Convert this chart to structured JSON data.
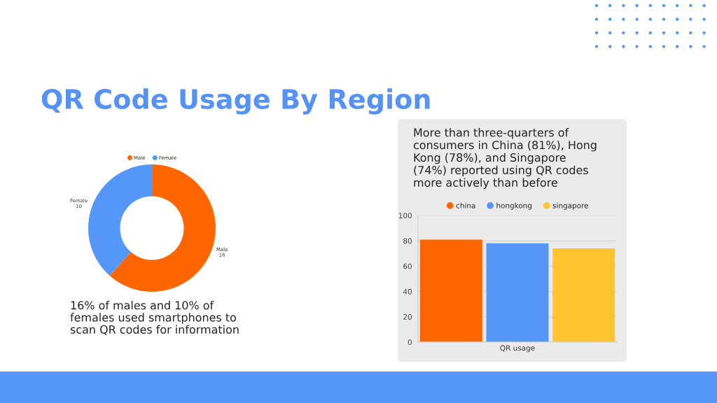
{
  "chart_data": [
    {
      "type": "donut",
      "title": "QR Code Usage By Region",
      "categories": [
        "Male",
        "Female"
      ],
      "values": [
        16,
        10
      ],
      "colors": [
        "#ff6600",
        "#5597f9"
      ],
      "data_labels": true,
      "legend": "top",
      "annotations": [
        "16% of males and 10% of\nfemales used smartphones to\nscan QR codes for information"
      ]
    },
    {
      "type": "bar",
      "title": "More than three-quarters of\nconsumers in China (81%), Hong\nKong (78%), and Singapore\n(74%) reported using QR codes\nmore actively than before",
      "categories": [
        "QR usage"
      ],
      "series": [
        {
          "name": "china",
          "color": "#ff6600",
          "values": [
            81
          ]
        },
        {
          "name": "hongkong",
          "color": "#5597f9",
          "values": [
            78
          ]
        },
        {
          "name": "singapore",
          "color": "#ffc42e",
          "values": [
            74
          ]
        }
      ],
      "ylim": [
        0,
        100
      ],
      "yticks": [
        0,
        20,
        40,
        60,
        80,
        100
      ],
      "grid": "y",
      "legend": "top"
    }
  ]
}
